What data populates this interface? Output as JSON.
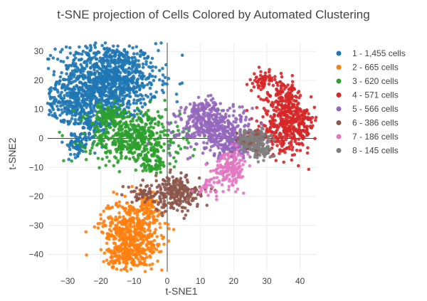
{
  "chart_data": {
    "type": "scatter",
    "title": "t-SNE projection of Cells Colored by Automated Clustering",
    "xlabel": "t-SNE1",
    "ylabel": "t-SNE2",
    "xlim": [
      -36,
      45
    ],
    "ylim": [
      -46,
      33
    ],
    "xticks": [
      -30,
      -20,
      -10,
      0,
      10,
      20,
      30,
      40
    ],
    "yticks": [
      30,
      20,
      10,
      0,
      -10,
      -20,
      -30,
      -40
    ],
    "grid": true,
    "zero_lines": true,
    "legend_position": "right",
    "series": [
      {
        "name": "1 - 1,455 cells",
        "color": "#1f77b4",
        "count": 1455,
        "clusters": [
          {
            "cx": -18,
            "cy": 20,
            "sx": 7.5,
            "sy": 6.5,
            "w": 0.75
          },
          {
            "cx": -29,
            "cy": 12,
            "sx": 3.5,
            "sy": 3,
            "w": 0.12
          },
          {
            "cx": -22,
            "cy": 5,
            "sx": 3,
            "sy": 3,
            "w": 0.08
          },
          {
            "cx": -27,
            "cy": -2,
            "sx": 1.5,
            "sy": 2,
            "w": 0.05
          }
        ]
      },
      {
        "name": "2 - 665 cells",
        "color": "#ff7f0e",
        "count": 665,
        "clusters": [
          {
            "cx": -11,
            "cy": -31,
            "sx": 4.5,
            "sy": 5,
            "w": 0.6
          },
          {
            "cx": -11,
            "cy": -40,
            "sx": 3.5,
            "sy": 3,
            "w": 0.3
          },
          {
            "cx": -6,
            "cy": -24,
            "sx": 2.5,
            "sy": 2.5,
            "w": 0.1
          }
        ]
      },
      {
        "name": "3 - 620 cells",
        "color": "#2ca02c",
        "count": 620,
        "clusters": [
          {
            "cx": -10,
            "cy": 0,
            "sx": 7,
            "sy": 4.5,
            "w": 0.75
          },
          {
            "cx": -17,
            "cy": 8,
            "sx": 4,
            "sy": 2,
            "w": 0.15
          },
          {
            "cx": -4,
            "cy": -8,
            "sx": 2.5,
            "sy": 2.5,
            "w": 0.1
          }
        ]
      },
      {
        "name": "4 - 571 cells",
        "color": "#d62728",
        "count": 571,
        "clusters": [
          {
            "cx": 36,
            "cy": 3,
            "sx": 4,
            "sy": 4,
            "w": 0.55
          },
          {
            "cx": 35,
            "cy": 14,
            "sx": 3,
            "sy": 3,
            "w": 0.25
          },
          {
            "cx": 29,
            "cy": 20,
            "sx": 1.5,
            "sy": 1.5,
            "w": 0.1
          },
          {
            "cx": 40,
            "cy": 7,
            "sx": 2,
            "sy": 2,
            "w": 0.1
          }
        ]
      },
      {
        "name": "5 - 566 cells",
        "color": "#9467bd",
        "count": 566,
        "clusters": [
          {
            "cx": 14,
            "cy": 4,
            "sx": 5.5,
            "sy": 4,
            "w": 0.65
          },
          {
            "cx": 20,
            "cy": -2,
            "sx": 3.5,
            "sy": 2.5,
            "w": 0.25
          },
          {
            "cx": 11,
            "cy": 10,
            "sx": 2.5,
            "sy": 1.5,
            "w": 0.1
          }
        ]
      },
      {
        "name": "6 - 386 cells",
        "color": "#8c564b",
        "count": 386,
        "clusters": [
          {
            "cx": 3,
            "cy": -19,
            "sx": 3.5,
            "sy": 3,
            "w": 0.6
          },
          {
            "cx": 26,
            "cy": -1,
            "sx": 2.5,
            "sy": 2,
            "w": 0.25
          },
          {
            "cx": -7,
            "cy": -19,
            "sx": 2.5,
            "sy": 1.5,
            "w": 0.15
          }
        ]
      },
      {
        "name": "7 - 186 cells",
        "color": "#e377c2",
        "count": 186,
        "clusters": [
          {
            "cx": 19,
            "cy": -10,
            "sx": 2.5,
            "sy": 3,
            "w": 0.85
          },
          {
            "cx": 12,
            "cy": -17,
            "sx": 1.5,
            "sy": 1.5,
            "w": 0.15
          }
        ]
      },
      {
        "name": "8 - 145 cells",
        "color": "#7f7f7f",
        "count": 145,
        "clusters": [
          {
            "cx": 26,
            "cy": -1,
            "sx": 2.5,
            "sy": 2,
            "w": 0.8
          },
          {
            "cx": 29,
            "cy": -5,
            "sx": 1.5,
            "sy": 1.5,
            "w": 0.2
          }
        ]
      }
    ]
  }
}
